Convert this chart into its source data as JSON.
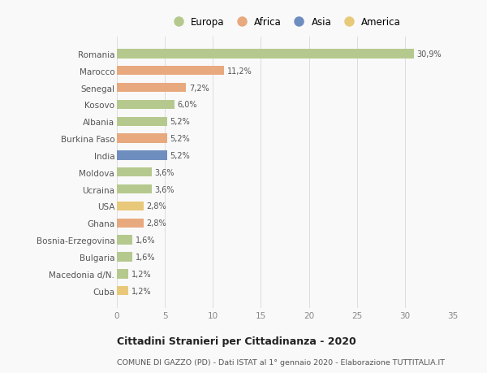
{
  "countries": [
    "Romania",
    "Marocco",
    "Senegal",
    "Kosovo",
    "Albania",
    "Burkina Faso",
    "India",
    "Moldova",
    "Ucraina",
    "USA",
    "Ghana",
    "Bosnia-Erzegovina",
    "Bulgaria",
    "Macedonia d/N.",
    "Cuba"
  ],
  "values": [
    30.9,
    11.2,
    7.2,
    6.0,
    5.2,
    5.2,
    5.2,
    3.6,
    3.6,
    2.8,
    2.8,
    1.6,
    1.6,
    1.2,
    1.2
  ],
  "labels": [
    "30,9%",
    "11,2%",
    "7,2%",
    "6,0%",
    "5,2%",
    "5,2%",
    "5,2%",
    "3,6%",
    "3,6%",
    "2,8%",
    "2,8%",
    "1,6%",
    "1,6%",
    "1,2%",
    "1,2%"
  ],
  "continents": [
    "Europa",
    "Africa",
    "Africa",
    "Europa",
    "Europa",
    "Africa",
    "Asia",
    "Europa",
    "Europa",
    "America",
    "Africa",
    "Europa",
    "Europa",
    "Europa",
    "America"
  ],
  "colors": {
    "Europa": "#b5c98e",
    "Africa": "#e8a97e",
    "Asia": "#6e8ebf",
    "America": "#e8c97a"
  },
  "title": "Cittadini Stranieri per Cittadinanza - 2020",
  "subtitle": "COMUNE DI GAZZO (PD) - Dati ISTAT al 1° gennaio 2020 - Elaborazione TUTTITALIA.IT",
  "xlim": [
    0,
    35
  ],
  "xticks": [
    0,
    5,
    10,
    15,
    20,
    25,
    30,
    35
  ],
  "background_color": "#f9f9f9",
  "bar_height": 0.55,
  "grid_color": "#dddddd"
}
